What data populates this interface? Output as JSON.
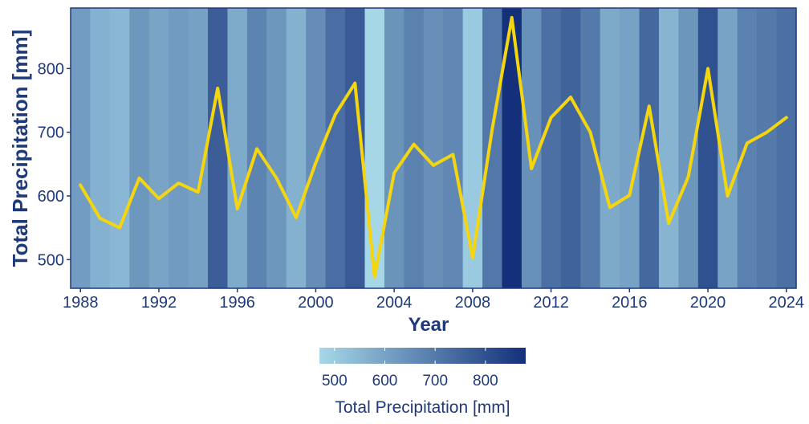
{
  "chart_data": {
    "type": "line",
    "title": "",
    "xlabel": "Year",
    "ylabel": "Total Precipitation [mm]",
    "xlim": [
      1987.5,
      2024.5
    ],
    "ylim": [
      455,
      895
    ],
    "xticks": [
      1988,
      1992,
      1996,
      2000,
      2004,
      2008,
      2012,
      2016,
      2020,
      2024
    ],
    "yticks": [
      500,
      600,
      700,
      800
    ],
    "grid": false,
    "background_stripes": "each year's column is coloured by its precipitation value",
    "series": [
      {
        "x": [
          1988,
          1989,
          1990,
          1991,
          1992,
          1993,
          1994,
          1995,
          1996,
          1997,
          1998,
          1999,
          2000,
          2001,
          2002,
          2003,
          2004,
          2005,
          2006,
          2007,
          2008,
          2009,
          2010,
          2011,
          2012,
          2013,
          2014,
          2015,
          2016,
          2017,
          2018,
          2019,
          2020,
          2021,
          2022,
          2023,
          2024
        ],
        "values": [
          617,
          565,
          550,
          628,
          596,
          620,
          606,
          769,
          580,
          674,
          628,
          566,
          652,
          728,
          777,
          473,
          636,
          681,
          648,
          665,
          503,
          705,
          880,
          643,
          723,
          755,
          700,
          582,
          601,
          741,
          557,
          630,
          800,
          600,
          683,
          700,
          723
        ]
      }
    ],
    "colorbar": {
      "label": "Total Precipitation [mm]",
      "ticks": [
        500,
        600,
        700,
        800
      ],
      "range": [
        470,
        880
      ],
      "colors": [
        "#a6d8e8",
        "#14307a"
      ],
      "position": "bottom"
    }
  },
  "colors": {
    "line": "#f5d60e",
    "axis_text": "#1f3a7a",
    "frame": "#1f3a7a"
  }
}
